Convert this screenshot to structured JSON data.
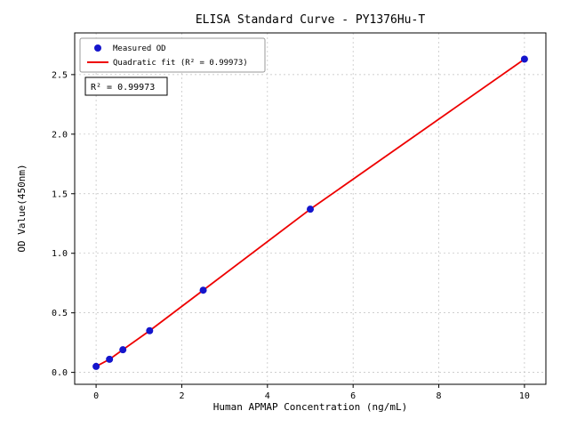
{
  "chart_data": {
    "type": "scatter",
    "title": "ELISA Standard Curve - PY1376Hu-T",
    "xlabel": "Human APMAP Concentration (ng/mL)",
    "ylabel": "OD Value(450nm)",
    "series": [
      {
        "name": "Measured OD",
        "style": "points",
        "x": [
          0,
          0.313,
          0.625,
          1.25,
          2.5,
          5,
          10
        ],
        "y": [
          0.05,
          0.11,
          0.19,
          0.35,
          0.69,
          1.37,
          2.63
        ]
      },
      {
        "name": "Quadratic fit (R² = 0.99973)",
        "style": "line",
        "x": [
          0,
          0.313,
          0.625,
          1.25,
          2.5,
          5,
          10
        ],
        "y": [
          0.05,
          0.11,
          0.19,
          0.35,
          0.69,
          1.37,
          2.63
        ]
      }
    ],
    "xlim": [
      -0.5,
      10.5
    ],
    "ylim": [
      -0.1,
      2.85
    ],
    "xticks": [
      "0",
      "2",
      "4",
      "6",
      "8",
      "10"
    ],
    "yticks": [
      "0.0",
      "0.5",
      "1.0",
      "1.5",
      "2.0",
      "2.5"
    ],
    "grid": true,
    "legend": {
      "position": "upper-left",
      "entries": [
        {
          "label": "Measured OD",
          "marker": "dot",
          "color": "#1515cc"
        },
        {
          "label": "Quadratic fit (R² = 0.99973)",
          "marker": "line",
          "color": "#ee0000"
        }
      ]
    },
    "annotation": "R² = 0.99973",
    "colors": {
      "scatter": "#1515cc",
      "fit_line": "#ee0000",
      "grid": "#bfbfbf",
      "axis": "#000000",
      "background": "#ffffff"
    }
  }
}
